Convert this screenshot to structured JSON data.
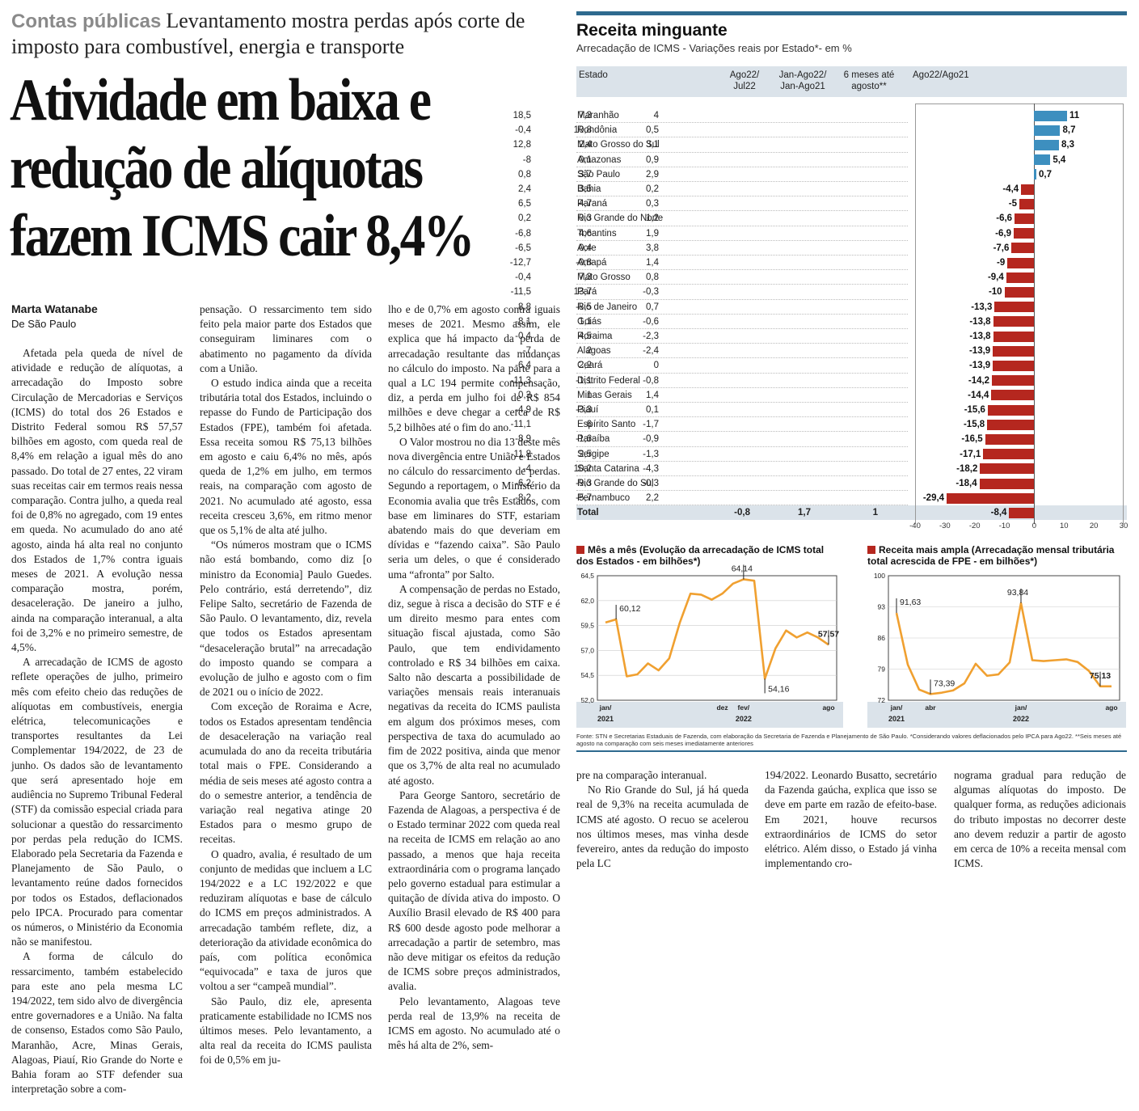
{
  "article": {
    "section": "Contas públicas",
    "kicker": "Levantamento mostra perdas após corte de imposto para combustível, energia e transporte",
    "headline_lines": [
      "Atividade em baixa e",
      "redução de alíquotas",
      "fazem ICMS cair 8,4%"
    ],
    "author": "Marta Watanabe",
    "location": "De São Paulo",
    "columns": [
      [
        "Afetada pela queda de nível de atividade e redução de alíquotas, a arrecadação do Imposto sobre Circulação de Mercadorias e Serviços (ICMS) do total dos 26 Estados e Distrito Federal somou R$ 57,57 bilhões em agosto, com queda real de 8,4% em relação a igual mês do ano passado. Do total de 27 entes, 22 viram suas receitas cair em termos reais nessa comparação. Contra julho, a queda real foi de 0,8% no agregado, com 19 entes em queda. No acumulado do ano até agosto, ainda há alta real no conjunto dos Estados de 1,7% contra iguais meses de 2021. A evolução nessa comparação mostra, porém, desaceleração. De janeiro a julho, ainda na comparação interanual, a alta foi de 3,2% e no primeiro semestre, de 4,5%.",
        "A arrecadação de ICMS de agosto reflete operações de julho, primeiro mês com efeito cheio das reduções de alíquotas em combustíveis, energia elétrica, telecomunicações e transportes resultantes da Lei Complementar 194/2022, de 23 de junho. Os dados são de levantamento que será apresentado hoje em audiência no Supremo Tribunal Federal (STF) da comissão especial criada para solucionar a questão do ressarcimento por perdas pela redução do ICMS. Elaborado pela Secretaria da Fazenda e Planejamento de São Paulo, o levantamento reúne dados fornecidos por todos os Estados, deflacionados pelo IPCA. Procurado para comentar os números, o Ministério da Economia não se manifestou.",
        "A forma de cálculo do ressarcimento, também estabelecido para este ano pela mesma LC 194/2022, tem sido alvo de divergência entre governadores e a União. Na falta de consenso, Estados como São Paulo, Maranhão, Acre, Minas Gerais, Alagoas, Piauí, Rio Grande do Norte e Bahia foram ao STF defender sua interpretação sobre a com-"
      ],
      [
        "pensação. O ressarcimento tem sido feito pela maior parte dos Estados que conseguiram liminares com o abatimento no pagamento da dívida com a União.",
        "O estudo indica ainda que a receita tributária total dos Estados, incluindo o repasse do Fundo de Participação dos Estados (FPE), também foi afetada. Essa receita somou R$ 75,13 bilhões em agosto e caiu 6,4% no mês, após queda de 1,2% em julho, em termos reais, na comparação com agosto de 2021. No acumulado até agosto, essa receita cresceu 3,6%, em ritmo menor que os 5,1% de alta até julho.",
        "“Os números mostram que o ICMS não está bombando, como diz [o ministro da Economia] Paulo Guedes. Pelo contrário, está derretendo”, diz Felipe Salto, secretário de Fazenda de São Paulo. O levantamento, diz, revela que todos os Estados apresentam “desaceleração brutal” na arrecadação do imposto quando se compara a evolução de julho e agosto com o fim de 2021 ou o início de 2022.",
        "Com exceção de Roraima e Acre, todos os Estados apresentam tendência de desaceleração na variação real acumulada do ano da receita tributária total mais o FPE. Considerando a média de seis meses até agosto contra a do o semestre anterior, a tendência de variação real negativa atinge 20 Estados para o mesmo grupo de receitas.",
        "O quadro, avalia, é resultado de um conjunto de medidas que incluem a LC 194/2022 e a LC 192/2022 e que reduziram alíquotas e base de cálculo do ICMS em preços administrados. A arrecadação também reflete, diz, a deterioração da atividade econômica do país, com política econômica “equivocada” e taxa de juros que voltou a ser “campeã mundial”.",
        "São Paulo, diz ele, apresenta praticamente estabilidade no ICMS nos últimos meses. Pelo levantamento, a alta real da receita do ICMS paulista foi de 0,5% em ju-"
      ],
      [
        "lho e de 0,7% em agosto contra iguais meses de 2021. Mesmo assim, ele explica que há impacto da perda de arrecadação resultante das mudanças no cálculo do imposto. Na parte para a qual a LC 194 permite compensação, diz, a perda em julho foi de R$ 854 milhões e deve chegar a cerca de R$ 5,2 bilhões até o fim do ano.",
        "O Valor mostrou no dia 13 deste mês nova divergência entre União e Estados no cálculo do ressarcimento de perdas. Segundo a reportagem, o Ministério da Economia avalia que três Estados, com base em liminares do STF, estariam abatendo mais do que deveriam em dívidas e “fazendo caixa”. São Paulo seria um deles, o que é considerado uma “afronta” por Salto.",
        "A compensação de perdas no Estado, diz, segue à risca a decisão do STF e é um direito mesmo para entes com situação fiscal ajustada, como São Paulo, que tem endividamento controlado e R$ 34 bilhões em caixa. Salto não descarta a possibilidade de variações mensais reais interanuais negativas da receita do ICMS paulista em algum dos próximos meses, com perspectiva de taxa do acumulado ao fim de 2022 positiva, ainda que menor que os 3,7% de alta real no acumulado até agosto.",
        "Para George Santoro, secretário de Fazenda de Alagoas, a perspectiva é de o Estado terminar 2022 com queda real na receita de ICMS em relação ao ano passado, a menos que haja receita extraordinária com o programa lançado pelo governo estadual para estimular a quitação de dívida ativa do imposto. O Auxílio Brasil elevado de R$ 400 para R$ 600 desde agosto pode melhorar a arrecadação a partir de setembro, mas não deve mitigar os efeitos da redução de ICMS sobre preços administrados, avalia.",
        "Pelo levantamento, Alagoas teve perda real de 13,9% na receita de ICMS em agosto. No acumulado até o mês há alta de 2%, sem-"
      ],
      [
        "pre na comparação interanual.",
        "No Rio Grande do Sul, já há queda real de 9,3% na receita acumulada de ICMS até agosto. O recuo se acelerou nos últimos meses, mas vinha desde fevereiro, antes da redução do imposto pela LC"
      ],
      [
        "194/2022. Leonardo Busatto, secretário da Fazenda gaúcha, explica que isso se deve em parte em razão de efeito-base. Em 2021, houve recursos extraordinários de ICMS do setor elétrico. Além disso, o Estado já vinha implementando cro-"
      ],
      [
        "nograma gradual para redução de algumas alíquotas do imposto. De qualquer forma, as reduções adicionais do tributo impostas no decorrer deste ano devem reduzir a partir de agosto em cerca de 10% a receita mensal com ICMS."
      ]
    ]
  },
  "infographic": {
    "title": "Receita minguante",
    "subtitle": "Arrecadação de ICMS - Variações reais por Estado*- em %",
    "headers": [
      "Estado",
      "Ago22/ Jul22",
      "Jan-Ago22/ Jan-Ago21",
      "6 meses até agosto**",
      "Ago22/Ago21"
    ],
    "total_label": "Total",
    "source": "Fonte: STN e Secretarias Estaduais de Fazenda, com elaboração da Secretaria de Fazenda e Planejamento de São Paulo. *Considerando valores deflacionados pelo IPCA para Ago22. **Seis meses até agosto na comparação com seis meses imediatamente anteriores",
    "colors": {
      "positive": "#3d8fbf",
      "negative": "#b5271f",
      "line": "#f0a030",
      "header_bg": "#dbe3ea",
      "accent": "#2e6a8e"
    }
  },
  "chart_data": [
    {
      "type": "bar",
      "orientation": "horizontal",
      "title": "Receita minguante",
      "categories": [
        "Maranhão",
        "Rondônia",
        "Mato Grosso do Sul",
        "Amazonas",
        "São Paulo",
        "Bahia",
        "Paraná",
        "Rio Grande do Norte",
        "Tocantins",
        "Acre",
        "Amapá",
        "Mato Grosso",
        "Pará",
        "Rio de Janeiro",
        "Goiás",
        "Roraima",
        "Alagoas",
        "Ceará",
        "Distrito Federal",
        "Minas Gerais",
        "Piauí",
        "Espírito Santo",
        "Paraíba",
        "Sergipe",
        "Santa Catarina",
        "Rio Grande do Sul",
        "Pernambuco",
        "Total"
      ],
      "ago22_jul22": [
        "18,5",
        "-0,4",
        "12,8",
        "-8",
        "0,8",
        "2,4",
        "6,5",
        "0,2",
        "-6,8",
        "-6,5",
        "-12,7",
        "-0,4",
        "-11,5",
        "8,8",
        "-8,1",
        "-0,4",
        "-7",
        "-6,4",
        "-11,3",
        "0,3",
        "-4,9",
        "-11,1",
        "-8,9",
        "-11,8",
        "-4",
        "-6,2",
        "-8,2",
        "-0,8"
      ],
      "jan_ago22_jan_ago21": [
        "7,3",
        "10,8",
        "2,4",
        "0,1",
        "3,7",
        "3,5",
        "4,7",
        "0,3",
        "4,6",
        "0,4",
        "-0,8",
        "7,3",
        "13,7",
        "-8,5",
        "1,1",
        "4,5",
        "2",
        "2,2",
        "-1,1",
        "1",
        "-3,3",
        "6",
        "-1,6",
        "2,5",
        "10,2",
        "-9,3",
        "-5,7",
        "1,7"
      ],
      "seis_meses": [
        "4",
        "0,5",
        "3,1",
        "0,9",
        "2,9",
        "0,2",
        "0,3",
        "1,2",
        "1,9",
        "3,8",
        "1,4",
        "0,8",
        "-0,3",
        "0,7",
        "-0,6",
        "-2,3",
        "-2,4",
        "0",
        "-0,8",
        "1,4",
        "0,1",
        "-1,7",
        "-0,9",
        "-1,3",
        "-4,3",
        "-0,3",
        "2,2",
        "1"
      ],
      "values": [
        11,
        8.7,
        8.3,
        5.4,
        0.7,
        -4.4,
        -5,
        -6.6,
        -6.9,
        -7.6,
        -9,
        -9.4,
        -10,
        -13.3,
        -13.8,
        -13.8,
        -13.9,
        -13.9,
        -14.2,
        -14.4,
        -15.6,
        -15.8,
        -16.5,
        -17.1,
        -18.2,
        -18.4,
        -29.4,
        -8.4
      ],
      "value_labels": [
        "11",
        "8,7",
        "8,3",
        "5,4",
        "0,7",
        "-4,4",
        "-5",
        "-6,6",
        "-6,9",
        "-7,6",
        "-9",
        "-9,4",
        "-10",
        "-13,3",
        "-13,8",
        "-13,8",
        "-13,9",
        "-13,9",
        "-14,2",
        "-14,4",
        "-15,6",
        "-15,8",
        "-16,5",
        "-17,1",
        "-18,2",
        "-18,4",
        "-29,4",
        "-8,4"
      ],
      "xlim": [
        -40,
        30
      ],
      "ticks": [
        "-40",
        "-30",
        "-20",
        "-10",
        "0",
        "10",
        "20",
        "30"
      ]
    },
    {
      "type": "line",
      "title": "Mês a mês (Evolução da arrecadação de ICMS total dos Estados - em bilhões*)",
      "x_labels": [
        "jan/",
        "dez",
        "fev/",
        "ago"
      ],
      "year_labels": [
        "2021",
        "2022"
      ],
      "y_ticks": [
        "64,5",
        "62,0",
        "59,5",
        "57,0",
        "54,5",
        "52,0"
      ],
      "ylim": [
        52.0,
        64.5
      ],
      "values": [
        59.8,
        60.12,
        54.4,
        54.6,
        55.7,
        55.0,
        56.2,
        59.8,
        62.7,
        62.6,
        62.1,
        62.7,
        63.7,
        64.14,
        64.0,
        54.16,
        57.2,
        59.0,
        58.3,
        58.8,
        58.3,
        57.57
      ],
      "annotations": [
        {
          "label": "60,12",
          "index": 1
        },
        {
          "label": "64,14",
          "index": 13
        },
        {
          "label": "54,16",
          "index": 15
        },
        {
          "label": "57,57",
          "index": 21
        }
      ]
    },
    {
      "type": "line",
      "title": "Receita mais ampla (Arrecadação mensal tributária total acrescida de FPE - em bilhões*)",
      "x_labels": [
        "jan/",
        "abr",
        "jan/",
        "ago"
      ],
      "year_labels": [
        "2021",
        "2022"
      ],
      "y_ticks": [
        "100",
        "93",
        "86",
        "79",
        "72"
      ],
      "ylim": [
        72,
        100
      ],
      "values": [
        91.63,
        80.0,
        74.4,
        73.39,
        73.7,
        74.2,
        75.8,
        80.2,
        77.5,
        77.8,
        80.5,
        93.84,
        81.0,
        80.8,
        81.0,
        81.2,
        80.6,
        78.6,
        75.13,
        75.13
      ],
      "annotations": [
        {
          "label": "91,63",
          "index": 0
        },
        {
          "label": "73,39",
          "index": 3
        },
        {
          "label": "93,84",
          "index": 11
        },
        {
          "label": "75,13",
          "index": 18
        }
      ]
    }
  ]
}
